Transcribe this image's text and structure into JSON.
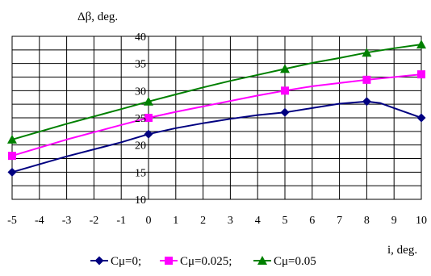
{
  "chart_data": {
    "type": "line",
    "ylabel": "Δβ, deg.",
    "xlabel": "i, deg.",
    "xlim": [
      -5,
      10
    ],
    "ylim": [
      10,
      40
    ],
    "x_ticks": [
      -5,
      -4,
      -3,
      -2,
      -1,
      0,
      1,
      2,
      3,
      4,
      5,
      6,
      7,
      8,
      9,
      10
    ],
    "y_ticks": [
      10,
      15,
      20,
      25,
      30,
      35,
      40
    ],
    "grid": true,
    "legend_position": "bottom",
    "series": [
      {
        "name": "Cμ=0;",
        "color": "#000080",
        "marker": "diamond",
        "markers": [
          [
            -5,
            15
          ],
          [
            0,
            22
          ],
          [
            5,
            26
          ],
          [
            8,
            28
          ],
          [
            10,
            25
          ]
        ],
        "curve": [
          [
            -5,
            15
          ],
          [
            -3,
            17.9
          ],
          [
            -1,
            20.5
          ],
          [
            0,
            22
          ],
          [
            1,
            23.1
          ],
          [
            2,
            24
          ],
          [
            3,
            24.8
          ],
          [
            4,
            25.5
          ],
          [
            5,
            26
          ],
          [
            6,
            26.8
          ],
          [
            7,
            27.6
          ],
          [
            8,
            28
          ],
          [
            8.5,
            27.7
          ],
          [
            9,
            26.8
          ],
          [
            10,
            25
          ]
        ]
      },
      {
        "name": "Cμ=0.025;",
        "color": "#ff00ff",
        "marker": "square",
        "markers": [
          [
            -5,
            18
          ],
          [
            0,
            25
          ],
          [
            5,
            30
          ],
          [
            8,
            32
          ],
          [
            10,
            33
          ]
        ],
        "curve": [
          [
            -5,
            18
          ],
          [
            -3,
            21
          ],
          [
            -1,
            23.7
          ],
          [
            0,
            25
          ],
          [
            1,
            26.1
          ],
          [
            2,
            27.1
          ],
          [
            3,
            28.1
          ],
          [
            4,
            29.1
          ],
          [
            5,
            30
          ],
          [
            6,
            30.8
          ],
          [
            7,
            31.4
          ],
          [
            8,
            32
          ],
          [
            9,
            32.5
          ],
          [
            10,
            33
          ]
        ]
      },
      {
        "name": "Cμ=0.05",
        "color": "#008000",
        "marker": "triangle",
        "markers": [
          [
            -5,
            21
          ],
          [
            0,
            28
          ],
          [
            5,
            34
          ],
          [
            8,
            37
          ],
          [
            10,
            38.5
          ]
        ],
        "curve": [
          [
            -5,
            21
          ],
          [
            -3,
            23.9
          ],
          [
            -1,
            26.6
          ],
          [
            0,
            28
          ],
          [
            1,
            29.3
          ],
          [
            2,
            30.6
          ],
          [
            3,
            31.8
          ],
          [
            4,
            32.9
          ],
          [
            5,
            34
          ],
          [
            6,
            35.1
          ],
          [
            7,
            36
          ],
          [
            8,
            37
          ],
          [
            9,
            37.8
          ],
          [
            10,
            38.5
          ]
        ]
      }
    ]
  }
}
